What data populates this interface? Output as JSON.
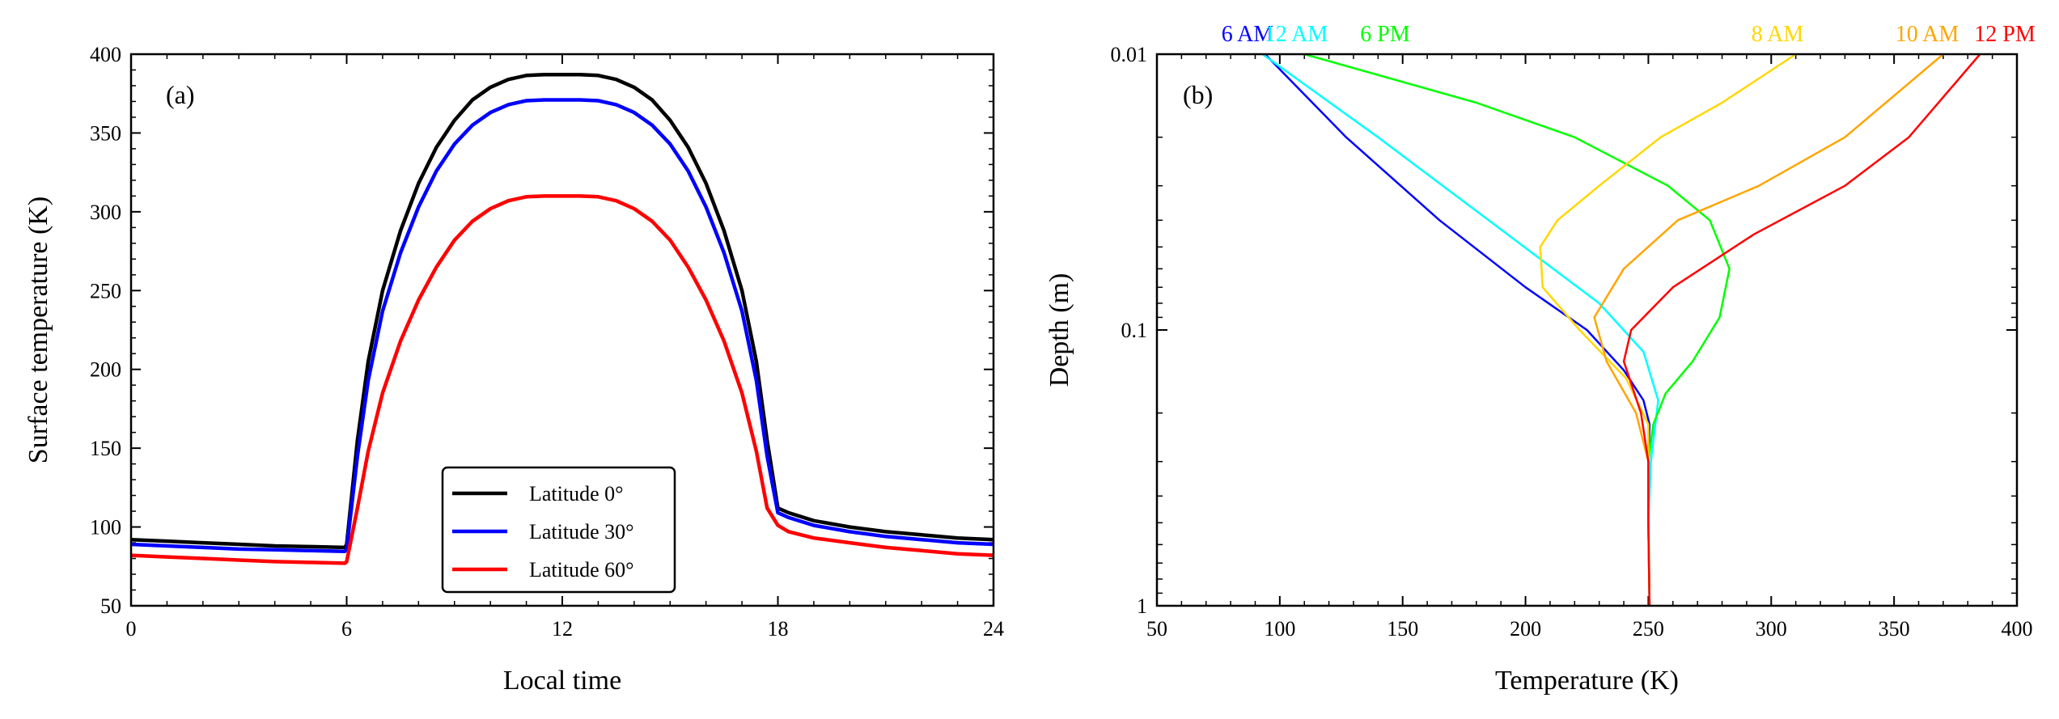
{
  "chart_data": [
    {
      "type": "line",
      "panel_label": "(a)",
      "xlabel": "Local time",
      "ylabel": "Surface temperature (K)",
      "xlim": [
        0,
        24
      ],
      "ylim": [
        50,
        400
      ],
      "xticks": [
        0,
        6,
        12,
        18,
        24
      ],
      "yticks": [
        50,
        100,
        150,
        200,
        250,
        300,
        350,
        400
      ],
      "grid": false,
      "legend_position": "bottom-center",
      "series": [
        {
          "name": "Latitude 0°",
          "color": "#000000",
          "x": [
            0,
            1,
            2,
            3,
            4,
            5,
            5.95,
            6.0,
            6.3,
            6.6,
            7.0,
            7.5,
            8.0,
            8.5,
            9.0,
            9.5,
            10.0,
            10.5,
            11.0,
            11.5,
            12.0,
            12.5,
            13.0,
            13.5,
            14.0,
            14.5,
            15.0,
            15.5,
            16.0,
            16.5,
            17.0,
            17.4,
            17.7,
            18.0,
            18.3,
            19,
            20,
            21,
            22,
            23,
            24
          ],
          "y": [
            92,
            91,
            90,
            89,
            88,
            87.5,
            87,
            89,
            155,
            205,
            250,
            288,
            318,
            341,
            358,
            371,
            379,
            384,
            386.5,
            387,
            387,
            387,
            386.5,
            384,
            379,
            371,
            358,
            341,
            318,
            288,
            250,
            205,
            155,
            112,
            109,
            104,
            100,
            97,
            95,
            93,
            92
          ]
        },
        {
          "name": "Latitude 30°",
          "color": "#0000FF",
          "x": [
            0,
            1,
            2,
            3,
            4,
            5,
            5.95,
            6.0,
            6.3,
            6.6,
            7.0,
            7.5,
            8.0,
            8.5,
            9.0,
            9.5,
            10.0,
            10.5,
            11.0,
            11.5,
            12.0,
            12.5,
            13.0,
            13.5,
            14.0,
            14.5,
            15.0,
            15.5,
            16.0,
            16.5,
            17.0,
            17.4,
            17.7,
            18.0,
            18.3,
            19,
            20,
            21,
            22,
            23,
            24
          ],
          "y": [
            89,
            88,
            87,
            86,
            85.5,
            85,
            84.5,
            86,
            145,
            193,
            237,
            274,
            303,
            326,
            343,
            355,
            363,
            368,
            370.5,
            371,
            371,
            371,
            370.5,
            368,
            363,
            355,
            343,
            326,
            303,
            274,
            237,
            193,
            145,
            109,
            106,
            101,
            97,
            94,
            92,
            90,
            89
          ]
        },
        {
          "name": "Latitude 60°",
          "color": "#FF0000",
          "x": [
            0,
            1,
            2,
            3,
            4,
            5,
            5.95,
            6.0,
            6.3,
            6.6,
            7.0,
            7.5,
            8.0,
            8.5,
            9.0,
            9.5,
            10.0,
            10.5,
            11.0,
            11.5,
            12.0,
            12.5,
            13.0,
            13.5,
            14.0,
            14.5,
            15.0,
            15.5,
            16.0,
            16.5,
            17.0,
            17.4,
            17.7,
            18.0,
            18.3,
            19,
            20,
            21,
            22,
            23,
            24
          ],
          "y": [
            82,
            81,
            80,
            79,
            78,
            77.5,
            77,
            78,
            112,
            148,
            185,
            218,
            244,
            265,
            282,
            294,
            302,
            307,
            309.5,
            310,
            310,
            310,
            309.5,
            307,
            302,
            294,
            282,
            265,
            244,
            218,
            185,
            148,
            112,
            101,
            97,
            93,
            90,
            87,
            85,
            83,
            82
          ]
        }
      ]
    },
    {
      "type": "line",
      "panel_label": "(b)",
      "xlabel": "Temperature (K)",
      "ylabel": "Depth (m)",
      "xlim": [
        50,
        400
      ],
      "ylim": [
        0.01,
        1
      ],
      "y_scale": "log",
      "y_inverted": true,
      "xticks": [
        50,
        100,
        150,
        200,
        250,
        300,
        350,
        400
      ],
      "yticks": [
        0.01,
        0.1,
        1
      ],
      "ytick_labels": [
        "0.01",
        "0.1",
        "1"
      ],
      "grid": false,
      "series_label_position": "top",
      "series": [
        {
          "name": "6 AM",
          "color": "#0000FF",
          "x": [
            94,
            127,
            165,
            200,
            225,
            240,
            248,
            250.5,
            250,
            250,
            250.5
          ],
          "y": [
            0.01,
            0.02,
            0.04,
            0.07,
            0.1,
            0.14,
            0.18,
            0.22,
            0.3,
            0.5,
            1.0
          ]
        },
        {
          "name": "12 AM",
          "color": "#00FFFF",
          "x": [
            93,
            140,
            185,
            230,
            248,
            254,
            251,
            250,
            250.5
          ],
          "y": [
            0.01,
            0.02,
            0.04,
            0.08,
            0.12,
            0.18,
            0.3,
            0.5,
            1.0
          ]
        },
        {
          "name": "6 PM",
          "color": "#00FF00",
          "x": [
            110,
            180,
            220,
            258,
            275,
            283,
            279,
            268,
            257,
            252,
            250,
            250,
            250.5
          ],
          "y": [
            0.01,
            0.015,
            0.02,
            0.03,
            0.04,
            0.06,
            0.09,
            0.13,
            0.17,
            0.22,
            0.3,
            0.5,
            1.0
          ]
        },
        {
          "name": "8 AM",
          "color": "#FFD700",
          "x": [
            310,
            280,
            255,
            230,
            213,
            206,
            207,
            222,
            241,
            250,
            250,
            250.5
          ],
          "y": [
            0.01,
            0.015,
            0.02,
            0.03,
            0.04,
            0.05,
            0.07,
            0.1,
            0.15,
            0.22,
            0.4,
            1.0
          ]
        },
        {
          "name": "10 AM",
          "color": "#FFA500",
          "x": [
            370,
            330,
            295,
            262,
            240,
            228,
            233,
            245,
            250,
            250,
            250.5
          ],
          "y": [
            0.01,
            0.02,
            0.03,
            0.04,
            0.06,
            0.09,
            0.13,
            0.2,
            0.3,
            0.5,
            1.0
          ]
        },
        {
          "name": "12 PM",
          "color": "#FF0000",
          "x": [
            385,
            356,
            330,
            293,
            260,
            243,
            240,
            247,
            250,
            250,
            250.5
          ],
          "y": [
            0.01,
            0.02,
            0.03,
            0.045,
            0.07,
            0.1,
            0.13,
            0.2,
            0.3,
            0.5,
            1.0
          ]
        }
      ]
    }
  ]
}
